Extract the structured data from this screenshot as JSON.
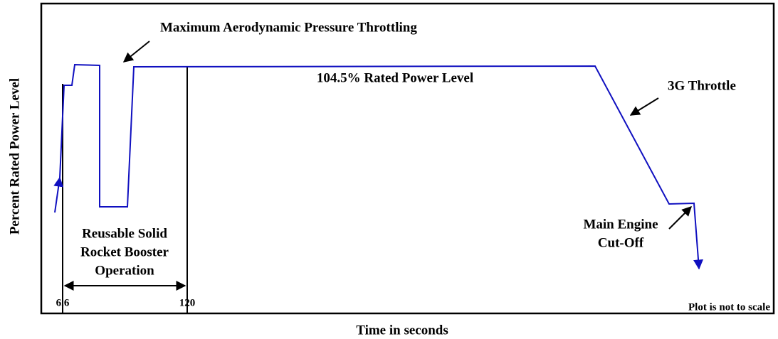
{
  "title": "Maximum Aerodynamic Pressure Throttling",
  "y_axis_label": "Percent Rated Power Level",
  "x_axis_label": "Time in seconds",
  "x_tick_labels": [
    "6.6",
    "120"
  ],
  "annotations": {
    "rated_power": "104.5% Rated Power Level",
    "throttle": "3G Throttle",
    "meco": [
      "Main Engine",
      "Cut-Off"
    ],
    "srb": [
      "Reusable Solid",
      "Rocket Booster",
      "Operation"
    ],
    "note": "Plot is not to scale"
  }
}
